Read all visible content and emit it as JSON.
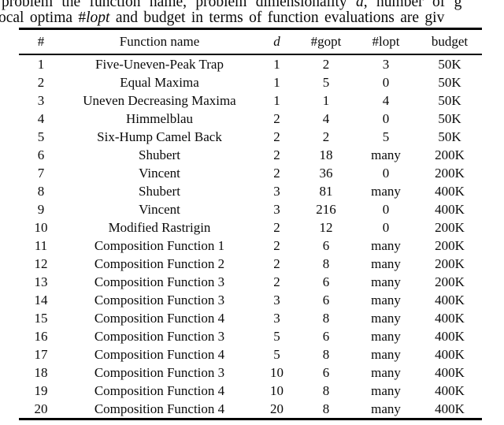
{
  "page": {
    "background": "#ffffff",
    "text_color": "#0a0a0a",
    "rule_color": "#000000"
  },
  "caption": {
    "line1": {
      "pre": "problem the function name, problem dimensionality ",
      "var": "d",
      "post": ", number of g"
    },
    "line2": {
      "pre": "ocal optima ",
      "hash": "#",
      "var": "lopt",
      "post": " and budget in terms of function evaluations are giv"
    }
  },
  "table": {
    "headers": [
      {
        "label": "#",
        "italic": false
      },
      {
        "label": "Function name",
        "italic": false
      },
      {
        "label": "d",
        "italic": true
      },
      {
        "label": "#gopt",
        "italic": false
      },
      {
        "label": "#lopt",
        "italic": false
      },
      {
        "label": "budget",
        "italic": false
      }
    ],
    "rows": [
      {
        "num": "1",
        "name": "Five-Uneven-Peak Trap",
        "d": "1",
        "gopt": "2",
        "lopt": "3",
        "budget": "50K"
      },
      {
        "num": "2",
        "name": "Equal Maxima",
        "d": "1",
        "gopt": "5",
        "lopt": "0",
        "budget": "50K"
      },
      {
        "num": "3",
        "name": "Uneven Decreasing Maxima",
        "d": "1",
        "gopt": "1",
        "lopt": "4",
        "budget": "50K"
      },
      {
        "num": "4",
        "name": "Himmelblau",
        "d": "2",
        "gopt": "4",
        "lopt": "0",
        "budget": "50K"
      },
      {
        "num": "5",
        "name": "Six-Hump Camel Back",
        "d": "2",
        "gopt": "2",
        "lopt": "5",
        "budget": "50K"
      },
      {
        "num": "6",
        "name": "Shubert",
        "d": "2",
        "gopt": "18",
        "lopt": "many",
        "budget": "200K"
      },
      {
        "num": "7",
        "name": "Vincent",
        "d": "2",
        "gopt": "36",
        "lopt": "0",
        "budget": "200K"
      },
      {
        "num": "8",
        "name": "Shubert",
        "d": "3",
        "gopt": "81",
        "lopt": "many",
        "budget": "400K"
      },
      {
        "num": "9",
        "name": "Vincent",
        "d": "3",
        "gopt": "216",
        "lopt": "0",
        "budget": "400K"
      },
      {
        "num": "10",
        "name": "Modified Rastrigin",
        "d": "2",
        "gopt": "12",
        "lopt": "0",
        "budget": "200K"
      },
      {
        "num": "11",
        "name": "Composition Function 1",
        "d": "2",
        "gopt": "6",
        "lopt": "many",
        "budget": "200K"
      },
      {
        "num": "12",
        "name": "Composition Function 2",
        "d": "2",
        "gopt": "8",
        "lopt": "many",
        "budget": "200K"
      },
      {
        "num": "13",
        "name": "Composition Function 3",
        "d": "2",
        "gopt": "6",
        "lopt": "many",
        "budget": "200K"
      },
      {
        "num": "14",
        "name": "Composition Function 3",
        "d": "3",
        "gopt": "6",
        "lopt": "many",
        "budget": "400K"
      },
      {
        "num": "15",
        "name": "Composition Function 4",
        "d": "3",
        "gopt": "8",
        "lopt": "many",
        "budget": "400K"
      },
      {
        "num": "16",
        "name": "Composition Function 3",
        "d": "5",
        "gopt": "6",
        "lopt": "many",
        "budget": "400K"
      },
      {
        "num": "17",
        "name": "Composition Function 4",
        "d": "5",
        "gopt": "8",
        "lopt": "many",
        "budget": "400K"
      },
      {
        "num": "18",
        "name": "Composition Function 3",
        "d": "10",
        "gopt": "6",
        "lopt": "many",
        "budget": "400K"
      },
      {
        "num": "19",
        "name": "Composition Function 4",
        "d": "10",
        "gopt": "8",
        "lopt": "many",
        "budget": "400K"
      },
      {
        "num": "20",
        "name": "Composition Function 4",
        "d": "20",
        "gopt": "8",
        "lopt": "many",
        "budget": "400K"
      }
    ]
  }
}
